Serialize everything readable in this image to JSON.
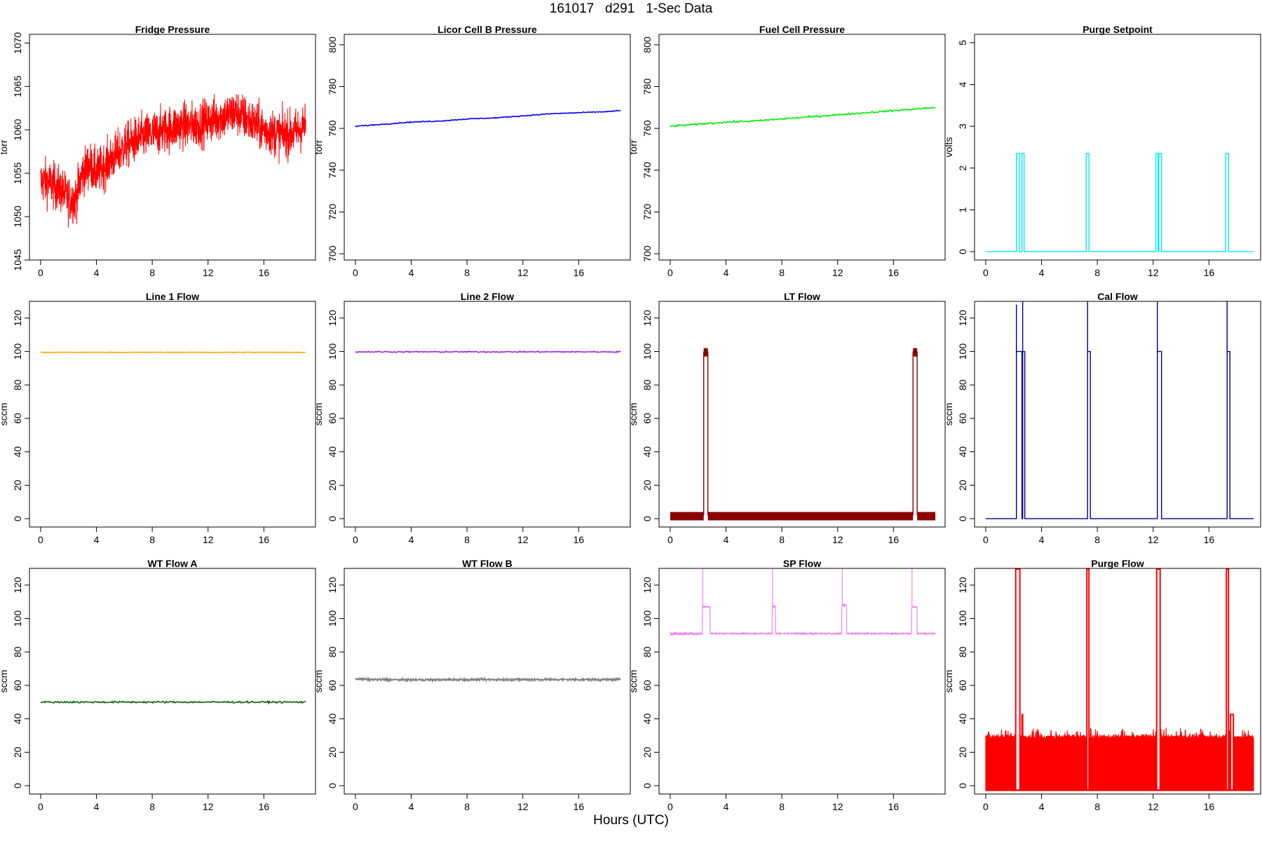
{
  "title": "161017   d291   1-Sec Data",
  "xlabel": "Hours (UTC)",
  "chart_data": [
    {
      "type": "line",
      "title": "Fridge Pressure",
      "ylabel": "torr",
      "ylim": [
        1045,
        1071
      ],
      "yticks": [
        1045,
        1050,
        1055,
        1060,
        1065,
        1070
      ],
      "xticks": [
        0,
        4,
        8,
        12,
        16
      ],
      "xlim": [
        -0.8,
        19.7
      ],
      "color": "#ff0000",
      "style": "noisy",
      "x": [
        0,
        0.5,
        1,
        1.5,
        2,
        2.5,
        3,
        3.5,
        4,
        5,
        6,
        7,
        8,
        9,
        10,
        11,
        12,
        13,
        14,
        15,
        16,
        17,
        18,
        19
      ],
      "y": [
        1054,
        1054,
        1053.5,
        1053,
        1052,
        1052,
        1055,
        1056,
        1055,
        1056.5,
        1058,
        1059,
        1059.5,
        1060,
        1060.5,
        1060.5,
        1061,
        1061.5,
        1062,
        1061,
        1060,
        1059.5,
        1059.5,
        1060.5
      ],
      "noise": 4.5
    },
    {
      "type": "line",
      "title": "Licor Cell B Pressure",
      "ylabel": "torr",
      "ylim": [
        697,
        805
      ],
      "yticks": [
        700,
        720,
        740,
        760,
        780,
        800
      ],
      "xticks": [
        0,
        4,
        8,
        12,
        16
      ],
      "xlim": [
        -0.8,
        19.7
      ],
      "color": "#0000ff",
      "style": "line",
      "x": [
        0,
        2,
        4,
        6,
        8,
        10,
        12,
        14,
        16,
        18,
        19
      ],
      "y": [
        761,
        762,
        763,
        763.5,
        764.5,
        765,
        766,
        767,
        767.5,
        768,
        768.5
      ],
      "noise": 0.4
    },
    {
      "type": "line",
      "title": "Fuel Cell Pressure",
      "ylabel": "torr",
      "ylim": [
        697,
        805
      ],
      "yticks": [
        700,
        720,
        740,
        760,
        780,
        800
      ],
      "xticks": [
        0,
        4,
        8,
        12,
        16
      ],
      "xlim": [
        -0.8,
        19.7
      ],
      "color": "#00ee00",
      "style": "line",
      "x": [
        0,
        2,
        4,
        6,
        8,
        10,
        12,
        14,
        16,
        18,
        19
      ],
      "y": [
        761,
        762,
        763,
        763.5,
        764.5,
        765.5,
        766.5,
        767.5,
        768.5,
        769.5,
        770
      ],
      "noise": 0.7
    },
    {
      "type": "line",
      "title": "Purge Setpoint",
      "ylabel": "volts",
      "ylim": [
        -0.2,
        5.2
      ],
      "yticks": [
        0,
        1,
        2,
        3,
        4,
        5
      ],
      "xticks": [
        0,
        4,
        8,
        12,
        16
      ],
      "xlim": [
        -0.8,
        19.7
      ],
      "color": "#00eeee",
      "style": "pulse",
      "baseline": 0,
      "pulses": [
        [
          2.2,
          2.4,
          2.35
        ],
        [
          2.6,
          2.75,
          2.35
        ],
        [
          7.2,
          7.4,
          2.35
        ],
        [
          12.2,
          12.35,
          2.35
        ],
        [
          12.4,
          12.6,
          2.35
        ],
        [
          17.2,
          17.4,
          2.35
        ]
      ],
      "xend": 19.2
    },
    {
      "type": "line",
      "title": "Line 1 Flow",
      "ylabel": "sccm",
      "ylim": [
        -5,
        130
      ],
      "yticks": [
        0,
        20,
        40,
        60,
        80,
        100,
        120
      ],
      "xticks": [
        0,
        4,
        8,
        12,
        16
      ],
      "xlim": [
        -0.8,
        19.7
      ],
      "color": "#ffa500",
      "style": "line",
      "x": [
        0,
        19
      ],
      "y": [
        99.5,
        99.5
      ],
      "noise": 0.3
    },
    {
      "type": "line",
      "title": "Line 2 Flow",
      "ylabel": "sccm",
      "ylim": [
        -5,
        130
      ],
      "yticks": [
        0,
        20,
        40,
        60,
        80,
        100,
        120
      ],
      "xticks": [
        0,
        4,
        8,
        12,
        16
      ],
      "xlim": [
        -0.8,
        19.7
      ],
      "color": "#a020f0",
      "style": "line",
      "x": [
        0,
        19
      ],
      "y": [
        99.8,
        99.8
      ],
      "noise": 0.6
    },
    {
      "type": "line",
      "title": "LT Flow",
      "ylabel": "sccm",
      "ylim": [
        -5,
        130
      ],
      "yticks": [
        0,
        20,
        40,
        60,
        80,
        100,
        120
      ],
      "xticks": [
        0,
        4,
        8,
        12,
        16
      ],
      "xlim": [
        -0.8,
        19.7
      ],
      "color": "#8b0000",
      "style": "band",
      "baseline": 2,
      "bandlow": -1,
      "bandhigh": 4,
      "pulses": [
        [
          2.4,
          2.7,
          100,
          97,
          102
        ],
        [
          17.4,
          17.7,
          100,
          97,
          102
        ]
      ],
      "xend": 19
    },
    {
      "type": "line",
      "title": "Cal Flow",
      "ylabel": "sccm",
      "ylim": [
        -5,
        130
      ],
      "yticks": [
        0,
        20,
        40,
        60,
        80,
        100,
        120
      ],
      "xticks": [
        0,
        4,
        8,
        12,
        16
      ],
      "xlim": [
        -0.8,
        19.7
      ],
      "color": "#00008b",
      "style": "pulse",
      "baseline": 0,
      "pulses": [
        [
          2.2,
          2.6,
          100,
          128
        ],
        [
          2.65,
          2.8,
          100,
          130
        ],
        [
          7.3,
          7.5,
          100,
          130
        ],
        [
          12.3,
          12.6,
          100,
          130
        ],
        [
          17.3,
          17.5,
          100,
          130
        ]
      ],
      "xend": 19.2
    },
    {
      "type": "line",
      "title": "WT Flow A",
      "ylabel": "sccm",
      "ylim": [
        -5,
        130
      ],
      "yticks": [
        0,
        20,
        40,
        60,
        80,
        100,
        120
      ],
      "xticks": [
        0,
        4,
        8,
        12,
        16
      ],
      "xlim": [
        -0.8,
        19.7
      ],
      "color": "#006400",
      "style": "line",
      "x": [
        0,
        19
      ],
      "y": [
        50,
        50
      ],
      "noise": 0.9
    },
    {
      "type": "line",
      "title": "WT Flow B",
      "ylabel": "sccm",
      "ylim": [
        -5,
        130
      ],
      "yticks": [
        0,
        20,
        40,
        60,
        80,
        100,
        120
      ],
      "xticks": [
        0,
        4,
        8,
        12,
        16
      ],
      "xlim": [
        -0.8,
        19.7
      ],
      "color": "#808080",
      "style": "noisyline",
      "x": [
        0,
        1,
        4,
        10,
        19
      ],
      "y": [
        64,
        63.5,
        63.3,
        63.5,
        63.5
      ],
      "noise": 1.2
    },
    {
      "type": "line",
      "title": "SP Flow",
      "ylabel": "sccm",
      "ylim": [
        -5,
        130
      ],
      "yticks": [
        0,
        20,
        40,
        60,
        80,
        100,
        120
      ],
      "xticks": [
        0,
        4,
        8,
        12,
        16
      ],
      "xlim": [
        -0.8,
        19.7
      ],
      "color": "#ee82ee",
      "style": "sp",
      "baseline": 91,
      "pulses": [
        [
          2.3,
          2.85,
          107,
          130
        ],
        [
          7.3,
          7.55,
          107,
          130
        ],
        [
          12.3,
          12.65,
          108,
          130
        ],
        [
          17.3,
          17.7,
          107,
          130
        ]
      ],
      "xend": 19
    },
    {
      "type": "line",
      "title": "Purge Flow",
      "ylabel": "sccm",
      "ylim": [
        -5,
        130
      ],
      "yticks": [
        0,
        20,
        40,
        60,
        80,
        100,
        120
      ],
      "xticks": [
        0,
        4,
        8,
        12,
        16
      ],
      "xlim": [
        -0.8,
        19.7
      ],
      "color": "#ff0000",
      "style": "purge",
      "bandlow": -3,
      "bandhigh": 32,
      "pulses": [
        [
          2.1,
          2.5,
          130
        ],
        [
          2.55,
          2.7,
          43
        ],
        [
          7.2,
          7.45,
          130
        ],
        [
          12.2,
          12.55,
          130
        ],
        [
          17.2,
          17.45,
          130
        ],
        [
          17.5,
          17.8,
          43
        ]
      ],
      "xend": 19.2
    }
  ]
}
